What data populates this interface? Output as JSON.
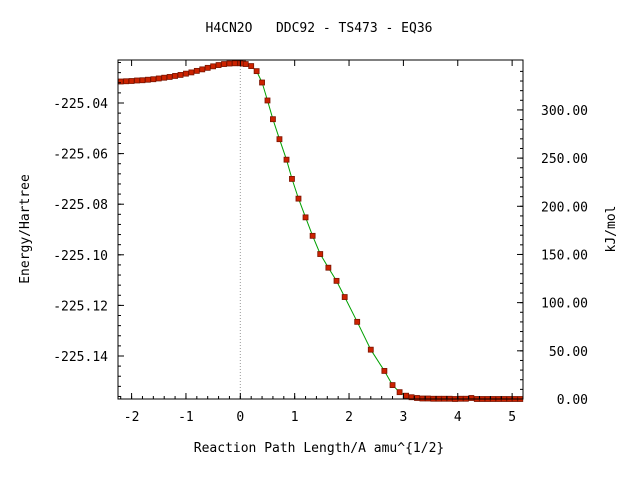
{
  "chart_data": {
    "type": "line",
    "title": "H4CN2O   DDC92 - TS473 - EQ36",
    "xlabel": "Reaction Path Length/A amu^{1/2}",
    "ylabel": "Energy/Hartree",
    "y2label": "kJ/mol",
    "xlim": [
      -2.25,
      5.2
    ],
    "ylim": [
      -225.157,
      -225.023
    ],
    "y2_ref_hartree": -225.157,
    "hartree_to_kjmol": 2625.5,
    "x_ticks": [
      {
        "v": -2,
        "label": "-2"
      },
      {
        "v": -1,
        "label": "-1"
      },
      {
        "v": 0,
        "label": "0"
      },
      {
        "v": 1,
        "label": "1"
      },
      {
        "v": 2,
        "label": "2"
      },
      {
        "v": 3,
        "label": "3"
      },
      {
        "v": 4,
        "label": "4"
      },
      {
        "v": 5,
        "label": "5"
      }
    ],
    "y_ticks": [
      {
        "v": -225.04,
        "label": "-225.04"
      },
      {
        "v": -225.06,
        "label": "-225.06"
      },
      {
        "v": -225.08,
        "label": "-225.08"
      },
      {
        "v": -225.1,
        "label": "-225.10"
      },
      {
        "v": -225.12,
        "label": "-225.12"
      },
      {
        "v": -225.14,
        "label": "-225.14"
      }
    ],
    "y2_ticks": [
      {
        "v": 0,
        "label": "0.00"
      },
      {
        "v": 50,
        "label": "50.00"
      },
      {
        "v": 100,
        "label": "100.00"
      },
      {
        "v": 150,
        "label": "150.00"
      },
      {
        "v": 200,
        "label": "200.00"
      },
      {
        "v": 250,
        "label": "250.00"
      },
      {
        "v": 300,
        "label": "300.00"
      }
    ],
    "ts_marker_x": 0,
    "grid": false,
    "colors": {
      "line": "#00a000",
      "marker": "#cc2200",
      "marker_edge": "#7a1400",
      "ts_line": "#999999",
      "axis": "#000000"
    },
    "series": [
      {
        "x": [
          -2.2,
          -2.1,
          -2.0,
          -1.9,
          -1.8,
          -1.7,
          -1.6,
          -1.5,
          -1.4,
          -1.3,
          -1.2,
          -1.1,
          -1.0,
          -0.9,
          -0.8,
          -0.7,
          -0.6,
          -0.5,
          -0.4,
          -0.3,
          -0.2,
          -0.1,
          0.0,
          0.05,
          0.1,
          0.2,
          0.3,
          0.4,
          0.5,
          0.6,
          0.72,
          0.85,
          0.95,
          1.07,
          1.2,
          1.33,
          1.47,
          1.62,
          1.77,
          1.92,
          2.15,
          2.4,
          2.65,
          2.8,
          2.93,
          3.05,
          3.15,
          3.25,
          3.35,
          3.45,
          3.55,
          3.65,
          3.75,
          3.85,
          3.95,
          4.05,
          4.15,
          4.25,
          4.35,
          4.45,
          4.55,
          4.65,
          4.75,
          4.85,
          4.95,
          5.05,
          5.15
        ],
        "y": [
          -225.0315,
          -225.0314,
          -225.0313,
          -225.0311,
          -225.031,
          -225.0308,
          -225.0306,
          -225.0303,
          -225.03,
          -225.0297,
          -225.0293,
          -225.0289,
          -225.0284,
          -225.0279,
          -225.0273,
          -225.0267,
          -225.0261,
          -225.0255,
          -225.025,
          -225.0246,
          -225.0244,
          -225.0243,
          -225.0243,
          -225.0244,
          -225.0246,
          -225.0254,
          -225.0274,
          -225.0319,
          -225.039,
          -225.0464,
          -225.0543,
          -225.0624,
          -225.07,
          -225.0778,
          -225.0852,
          -225.0925,
          -225.0997,
          -225.1051,
          -225.1103,
          -225.1167,
          -225.1265,
          -225.1375,
          -225.1459,
          -225.1515,
          -225.1543,
          -225.1557,
          -225.1563,
          -225.1566,
          -225.1568,
          -225.1568,
          -225.1569,
          -225.1569,
          -225.1569,
          -225.1569,
          -225.157,
          -225.1569,
          -225.1569,
          -225.1566,
          -225.157,
          -225.157,
          -225.157,
          -225.157,
          -225.157,
          -225.157,
          -225.157,
          -225.157,
          -225.157
        ]
      }
    ]
  }
}
